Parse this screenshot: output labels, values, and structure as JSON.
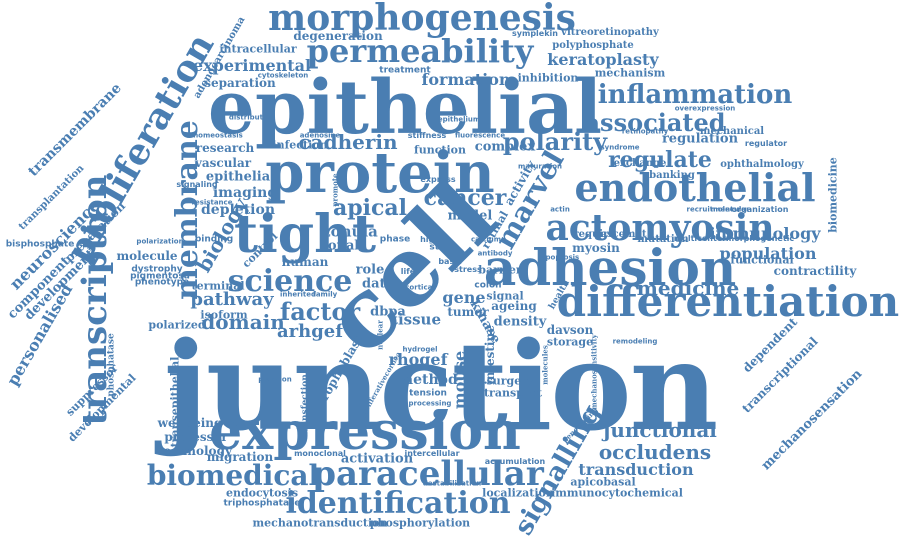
{
  "palette": {
    "text": "#4a7eb2",
    "background": "#ffffff"
  },
  "words": {
    "junction": "junction",
    "epithelial": "epithelial",
    "cell": "cell",
    "expression": "expression",
    "adhesion": "adhesion",
    "differentiation": "differentiation",
    "protein": "protein",
    "tight": "tight",
    "morphogenesis": "morphogenesis",
    "permeability": "permeability",
    "endothelial": "endothelial",
    "actomyosin": "actomyosin",
    "paracellular": "paracellular",
    "identification": "identification",
    "biomedical": "biomedical",
    "transcription": "transcription",
    "proliferation": "proliferation",
    "membrane": "membrane",
    "signalling": "signalling",
    "science": "science",
    "inflammation": "inflammation",
    "associated": "associated",
    "polarity": "polarity",
    "regulate": "regulate",
    "marvel": "marvel",
    "factor": "factor",
    "apical": "apical",
    "cancer": "cancer",
    "occludens": "occludens",
    "junctional": "junctional",
    "medicine": "medicine",
    "cadherin": "cadherin",
    "domain": "domain",
    "pathway": "pathway",
    "arhgef": "arhgef",
    "biology": "biology",
    "transduction": "transduction",
    "personalised": "personalised",
    "neuroscience": "neuroscience",
    "transmembrane": "transmembrane",
    "formation": "formation",
    "experimental": "experimental",
    "keratoplasty": "keratoplasty",
    "immunology": "immunology",
    "population": "population",
    "contractility": "contractility",
    "mechanosensation": "mechanosensation",
    "transcriptional": "transcriptional",
    "dependent": "dependent",
    "mechanotransduction": "mechanotransduction",
    "phosphorylation": "phosphorylation",
    "apicobasal": "apicobasal",
    "immunocytochemical": "immunocytochemical",
    "localization": "localization",
    "endocytosis": "endocytosis",
    "triphosphatase": "triphosphatase",
    "migration": "migration",
    "technology": "technology",
    "professor": "professor",
    "wellbeing": "wellbeing",
    "activation": "activation",
    "mouse": "mouse",
    "rhogef": "rhogef",
    "method": "method",
    "tension": "tension",
    "surgery": "surgery",
    "transport": "transport",
    "intestine": "intestine",
    "davson": "davson",
    "storage": "storage",
    "density": "density",
    "gene": "gene",
    "tissue": "tissue",
    "dbpa": "dbpa",
    "tumor": "tumor",
    "ageing": "ageing",
    "signal": "signal",
    "isoform": "isoform",
    "polarized": "polarized",
    "terminal": "terminal",
    "phenotype": "phenotype",
    "dystrophy": "dystrophy",
    "pigmentosa": "pigmentosa",
    "molecule": "molecule",
    "component": "component",
    "development": "development",
    "preparation": "preparation",
    "bisphosphate": "bisphosphate",
    "transplantation": "transplantation",
    "suppressor": "suppressor",
    "developmental": "developmental",
    "phosphatase": "phosphatase",
    "transepithelial": "transepithelial",
    "trophoblast": "trophoblast",
    "human": "human",
    "zonula": "zonula",
    "zonab": "zonab",
    "role": "role",
    "data": "data",
    "model": "model",
    "myosin": "myosin",
    "require": "require",
    "descemet": "descemet",
    "mutation": "mutation",
    "multicenter": "multicenter",
    "morphogenetic": "morphogenetic",
    "functional": "functional",
    "biomedicine": "biomedicine",
    "organization": "organization",
    "recruitment": "recruitment",
    "molecular": "molecular",
    "ophthalmology": "ophthalmology",
    "banking": "banking",
    "exchange": "exchange",
    "regulation": "regulation",
    "retinopathy": "retinopathy",
    "mechanical": "mechanical",
    "regulator": "regulator",
    "overexpression": "overexpression",
    "mechanism": "mechanism",
    "polyphosphate": "polyphosphate",
    "vitreoretinopathy": "vitreoretinopathy",
    "inhibition": "inhibition",
    "treatment": "treatment",
    "symplekin": "symplekin",
    "degeneration": "degeneration",
    "intracellular": "intracellular",
    "separation": "separation",
    "cytoskeleton": "cytoskeleton",
    "adenocarcinoma": "adenocarcinoma",
    "research": "research",
    "vascular": "vascular",
    "epithelia": "epithelia",
    "imaging": "imaging",
    "depletion": "depletion",
    "infection": "infection",
    "adenosine": "adenosine",
    "homeostasis": "homeostasis",
    "distribution": "distribution",
    "polarization": "polarization",
    "binding": "binding",
    "control": "control",
    "resistance": "resistance",
    "signaling": "signaling",
    "function": "function",
    "complex": "complex",
    "stiffness": "stiffness",
    "epithelium": "epithelium",
    "activity": "activity",
    "retinal": "retinal",
    "maturation": "maturation",
    "express": "express",
    "barrier": "barrier",
    "kinase": "kinase",
    "stem": "stem",
    "phase": "phase",
    "basic": "basic",
    "colon": "colon",
    "health": "health",
    "family": "family",
    "inherited": "inherited",
    "plasmon": "plasmon",
    "nuclear": "nuclear",
    "proliferativecornea": "proliferativecornea",
    "intercellular": "intercellular",
    "monoclonal": "monoclonal",
    "accumulation": "accumulation",
    "penetrating": "penetrating",
    "remodeling": "remodeling",
    "destabilization": "destabilization",
    "processing": "processing",
    "hydrogel": "hydrogel",
    "mechanosensitivity": "mechanosensitivity",
    "molecules": "molecules",
    "transfection": "transfection",
    "life": "life",
    "high": "high",
    "stress": "stress",
    "cortical": "cortical",
    "antibody": "antibody",
    "promote": "promote",
    "fluorescence": "fluorescence",
    "actin": "actin",
    "syndrome": "syndrome",
    "calcium": "calcium",
    "apoptosis": "apoptosis"
  }
}
